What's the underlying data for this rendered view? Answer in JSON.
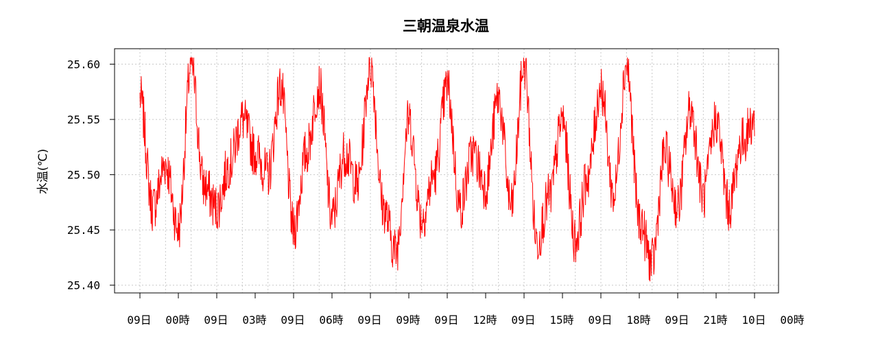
{
  "chart_data": {
    "type": "line",
    "title": "三朝温泉水温",
    "ylabel": "水温(℃)",
    "xlabel": "",
    "ylim": [
      25.393,
      25.614
    ],
    "yticks": [
      25.4,
      25.45,
      25.5,
      25.55,
      25.6
    ],
    "ytick_labels": [
      "25.40",
      "25.45",
      "25.50",
      "25.55",
      "25.60"
    ],
    "x_range_hours": [
      0,
      24
    ],
    "xticks_hours": [
      0,
      3,
      6,
      9,
      12,
      15,
      18,
      21,
      24
    ],
    "xtick_labels": [
      "09日 00時",
      "09日 03時",
      "09日 06時",
      "09日 09時",
      "09日 12時",
      "09日 15時",
      "09日 18時",
      "09日 21時",
      "10日 00時"
    ],
    "grid": true,
    "series": [
      {
        "color": "#ff0000",
        "values_note": "",
        "x": [
          0.0,
          0.5,
          1.0,
          1.5,
          2.0,
          2.5,
          3.0,
          3.5,
          4.0,
          4.5,
          5.0,
          5.5,
          6.0,
          6.5,
          7.0,
          7.5,
          8.0,
          8.5,
          9.0,
          9.5,
          10.0,
          10.5,
          11.0,
          11.5,
          12.0,
          12.5,
          13.0,
          13.5,
          14.0,
          14.5,
          15.0,
          15.5,
          16.0,
          16.5,
          17.0,
          17.5,
          18.0,
          18.5,
          19.0,
          19.5,
          20.0,
          20.5,
          21.0,
          21.5,
          22.0,
          22.5,
          23.0,
          23.5,
          24.0
        ],
        "y": [
          25.57,
          25.47,
          25.51,
          25.45,
          25.6,
          25.49,
          25.47,
          25.51,
          25.55,
          25.52,
          25.5,
          25.58,
          25.45,
          25.52,
          25.58,
          25.46,
          25.52,
          25.49,
          25.6,
          25.47,
          25.43,
          25.55,
          25.46,
          25.5,
          25.58,
          25.47,
          25.52,
          25.49,
          25.57,
          25.47,
          25.6,
          25.44,
          25.48,
          25.55,
          25.44,
          25.5,
          25.58,
          25.48,
          25.6,
          25.46,
          25.42,
          25.52,
          25.47,
          25.56,
          25.48,
          25.55,
          25.47,
          25.53,
          25.55
        ]
      }
    ]
  }
}
